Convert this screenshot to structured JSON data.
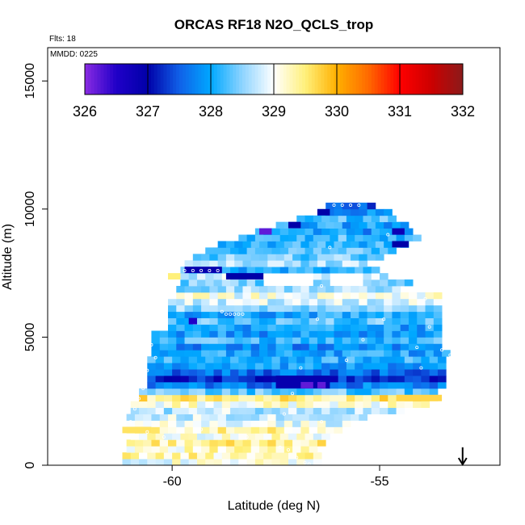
{
  "chart_data": {
    "type": "heatmap",
    "title": "ORCAS RF18 N2O_QCLS_trop",
    "notes": {
      "flights": "Flts: 18",
      "date": "MMDD: 0225"
    },
    "xlabel": "Latitude (deg N)",
    "ylabel": "Altitude (m)",
    "xlim": [
      -63,
      -52.1
    ],
    "ylim": [
      0,
      16300
    ],
    "x_ticks": [
      -60,
      -55
    ],
    "y_ticks": [
      0,
      5000,
      10000,
      15000
    ],
    "colorbar": {
      "range": [
        326,
        332
      ],
      "ticks": [
        326,
        327,
        328,
        329,
        330,
        331,
        332
      ],
      "stops": [
        {
          "v": 326.0,
          "c": "#8a2be2"
        },
        {
          "v": 326.5,
          "c": "#2000c8"
        },
        {
          "v": 327.0,
          "c": "#0000a8"
        },
        {
          "v": 327.5,
          "c": "#1060e8"
        },
        {
          "v": 328.0,
          "c": "#00a8ff"
        },
        {
          "v": 328.5,
          "c": "#8ed4ff"
        },
        {
          "v": 329.0,
          "c": "#ffffff"
        },
        {
          "v": 329.5,
          "c": "#fff07a"
        },
        {
          "v": 330.0,
          "c": "#ffb000"
        },
        {
          "v": 330.5,
          "c": "#ff6a00"
        },
        {
          "v": 331.0,
          "c": "#ff0000"
        },
        {
          "v": 331.5,
          "c": "#cc0000"
        },
        {
          "v": 332.0,
          "c": "#8b1a1a"
        }
      ]
    },
    "cell_size": {
      "dlat": 0.2,
      "dalt": 250
    },
    "bands": [
      {
        "alt": 0,
        "lat0": -61.2,
        "lat1": -56.5,
        "v": 329.0
      },
      {
        "alt": 250,
        "lat0": -61.2,
        "lat1": -56.5,
        "v": 329.3
      },
      {
        "alt": 500,
        "lat0": -61.1,
        "lat1": -56.6,
        "v": 329.2
      },
      {
        "alt": 750,
        "lat0": -61.1,
        "lat1": -56.3,
        "v": 329.4
      },
      {
        "alt": 1000,
        "lat0": -61.0,
        "lat1": -56.2,
        "v": 329.1
      },
      {
        "alt": 1250,
        "lat0": -61.1,
        "lat1": -56.0,
        "v": 329.3
      },
      {
        "alt": 1500,
        "lat0": -61.1,
        "lat1": -55.7,
        "v": 328.9
      },
      {
        "alt": 1750,
        "lat0": -61.1,
        "lat1": -55.3,
        "v": 328.8
      },
      {
        "alt": 2000,
        "lat0": -61.0,
        "lat1": -54.5,
        "v": 328.7
      },
      {
        "alt": 2250,
        "lat0": -61.0,
        "lat1": -53.9,
        "v": 329.1
      },
      {
        "alt": 2500,
        "lat0": -60.8,
        "lat1": -53.5,
        "v": 329.5
      },
      {
        "alt": 2750,
        "lat0": -60.8,
        "lat1": -53.5,
        "v": 328.3
      },
      {
        "alt": 3000,
        "lat0": -60.6,
        "lat1": -53.5,
        "v": 327.7
      },
      {
        "alt": 3250,
        "lat0": -60.6,
        "lat1": -53.5,
        "v": 327.2
      },
      {
        "alt": 3500,
        "lat0": -60.6,
        "lat1": -53.5,
        "v": 327.6
      },
      {
        "alt": 3750,
        "lat0": -60.6,
        "lat1": -53.5,
        "v": 327.9
      },
      {
        "alt": 4000,
        "lat0": -60.6,
        "lat1": -53.5,
        "v": 328.1
      },
      {
        "alt": 4250,
        "lat0": -60.5,
        "lat1": -53.3,
        "v": 328.0
      },
      {
        "alt": 4500,
        "lat0": -60.5,
        "lat1": -53.5,
        "v": 327.8
      },
      {
        "alt": 4750,
        "lat0": -60.5,
        "lat1": -53.5,
        "v": 328.2
      },
      {
        "alt": 5000,
        "lat0": -60.5,
        "lat1": -53.5,
        "v": 327.9
      },
      {
        "alt": 5250,
        "lat0": -60.1,
        "lat1": -53.5,
        "v": 328.0
      },
      {
        "alt": 5500,
        "lat0": -60.1,
        "lat1": -53.5,
        "v": 328.3
      },
      {
        "alt": 5750,
        "lat0": -60.1,
        "lat1": -53.5,
        "v": 328.0
      },
      {
        "alt": 6000,
        "lat0": -60.1,
        "lat1": -53.5,
        "v": 328.5
      },
      {
        "alt": 6250,
        "lat0": -60.1,
        "lat1": -53.5,
        "v": 328.8
      },
      {
        "alt": 6500,
        "lat0": -60.1,
        "lat1": -53.5,
        "v": 329.0
      },
      {
        "alt": 6750,
        "lat0": -59.9,
        "lat1": -54.5,
        "v": 328.6
      },
      {
        "alt": 7000,
        "lat0": -59.8,
        "lat1": -54.3,
        "v": 328.4
      },
      {
        "alt": 7250,
        "lat0": -59.8,
        "lat1": -54.8,
        "v": 328.7
      },
      {
        "alt": 7500,
        "lat0": -59.8,
        "lat1": -55.0,
        "v": 328.1
      },
      {
        "alt": 7750,
        "lat0": -59.7,
        "lat1": -55.4,
        "v": 328.6
      },
      {
        "alt": 8000,
        "lat0": -59.5,
        "lat1": -55.0,
        "v": 328.4
      },
      {
        "alt": 8250,
        "lat0": -59.2,
        "lat1": -54.7,
        "v": 328.3
      },
      {
        "alt": 8500,
        "lat0": -58.9,
        "lat1": -54.4,
        "v": 328.1
      },
      {
        "alt": 8750,
        "lat0": -58.4,
        "lat1": -54.0,
        "v": 328.2
      },
      {
        "alt": 9000,
        "lat0": -58.0,
        "lat1": -54.2,
        "v": 327.9
      },
      {
        "alt": 9250,
        "lat0": -57.5,
        "lat1": -54.2,
        "v": 328.0
      },
      {
        "alt": 9500,
        "lat0": -57.0,
        "lat1": -54.6,
        "v": 328.2
      },
      {
        "alt": 9750,
        "lat0": -56.5,
        "lat1": -54.6,
        "v": 327.8
      },
      {
        "alt": 10000,
        "lat0": -56.3,
        "lat1": -55.1,
        "v": 327.5
      }
    ],
    "holes": [
      {
        "lat0": -57.7,
        "lat1": -56.6,
        "alt0": 7000,
        "alt1": 7500
      },
      {
        "lat0": -56.3,
        "lat1": -55.3,
        "alt0": 7000,
        "alt1": 7500
      }
    ],
    "patches": [
      {
        "lat0": -59.7,
        "lat1": -58.8,
        "alt0": 7500,
        "alt1": 7750,
        "v": 326.9
      },
      {
        "lat0": -58.7,
        "lat1": -57.8,
        "alt0": 7250,
        "alt1": 7500,
        "v": 327.0
      },
      {
        "lat0": -57.5,
        "lat1": -56.2,
        "alt0": 3000,
        "alt1": 3500,
        "v": 326.9
      },
      {
        "lat0": -56.9,
        "lat1": -56.6,
        "alt0": 3000,
        "alt1": 3250,
        "v": 326.2
      },
      {
        "lat0": -56.5,
        "lat1": -56.3,
        "alt0": 3000,
        "alt1": 3250,
        "v": 326.2
      },
      {
        "lat0": -59.6,
        "lat1": -59.4,
        "alt0": 5500,
        "alt1": 5750,
        "v": 326.5
      },
      {
        "lat0": -57.9,
        "lat1": -57.6,
        "alt0": 9000,
        "alt1": 9250,
        "v": 326.2
      },
      {
        "lat0": -57.2,
        "lat1": -56.9,
        "alt0": 9250,
        "alt1": 9500,
        "v": 327.0
      },
      {
        "lat0": -56.5,
        "lat1": -56.2,
        "alt0": 9750,
        "alt1": 10000,
        "v": 327.0
      },
      {
        "lat0": -54.7,
        "lat1": -54.3,
        "alt0": 8500,
        "alt1": 8750,
        "v": 327.0
      },
      {
        "lat0": -54.7,
        "lat1": -54.4,
        "alt0": 9000,
        "alt1": 9250,
        "v": 326.8
      },
      {
        "lat0": -60.1,
        "lat1": -59.8,
        "alt0": 7250,
        "alt1": 7500,
        "v": 329.5
      },
      {
        "lat0": -61.2,
        "lat1": -60.5,
        "alt0": 1250,
        "alt1": 1500,
        "v": 329.6
      },
      {
        "lat0": -54.6,
        "lat1": -53.5,
        "alt0": 2500,
        "alt1": 2750,
        "v": 329.7
      }
    ],
    "flight_track": [
      {
        "lat": -59.7,
        "alt": 7600
      },
      {
        "lat": -59.5,
        "alt": 7600
      },
      {
        "lat": -59.3,
        "alt": 7600
      },
      {
        "lat": -59.1,
        "alt": 7600
      },
      {
        "lat": -58.9,
        "alt": 7600
      },
      {
        "lat": -58.8,
        "alt": 6000
      },
      {
        "lat": -58.7,
        "alt": 5900
      },
      {
        "lat": -58.6,
        "alt": 5900
      },
      {
        "lat": -58.5,
        "alt": 5900
      },
      {
        "lat": -58.4,
        "alt": 5900
      },
      {
        "lat": -58.3,
        "alt": 5900
      },
      {
        "lat": -60.5,
        "alt": 4700
      },
      {
        "lat": -60.4,
        "alt": 4200
      },
      {
        "lat": -60.6,
        "alt": 3700
      },
      {
        "lat": -60.7,
        "alt": 3000
      },
      {
        "lat": -60.8,
        "alt": 2600
      },
      {
        "lat": -60.9,
        "alt": 2200
      },
      {
        "lat": -61.0,
        "alt": 1700
      },
      {
        "lat": -60.6,
        "alt": 1300
      },
      {
        "lat": -60.2,
        "alt": 1100
      },
      {
        "lat": -59.3,
        "alt": 1400
      },
      {
        "lat": -58.2,
        "alt": 1100
      },
      {
        "lat": -57.4,
        "alt": 700
      },
      {
        "lat": -57.0,
        "alt": 300
      },
      {
        "lat": -56.8,
        "alt": 100
      },
      {
        "lat": -56.7,
        "alt": 50
      },
      {
        "lat": -57.2,
        "alt": 600
      },
      {
        "lat": -57.3,
        "alt": 2000
      },
      {
        "lat": -57.1,
        "alt": 2800
      },
      {
        "lat": -56.9,
        "alt": 3800
      },
      {
        "lat": -56.5,
        "alt": 5700
      },
      {
        "lat": -56.4,
        "alt": 7000
      },
      {
        "lat": -56.2,
        "alt": 8500
      },
      {
        "lat": -56.1,
        "alt": 10150
      },
      {
        "lat": -55.9,
        "alt": 10150
      },
      {
        "lat": -55.7,
        "alt": 10150
      },
      {
        "lat": -55.5,
        "alt": 10150
      },
      {
        "lat": -54.8,
        "alt": 9000
      },
      {
        "lat": -54.2,
        "alt": 8200
      },
      {
        "lat": -53.9,
        "alt": 6500
      },
      {
        "lat": -53.8,
        "alt": 5400
      },
      {
        "lat": -53.5,
        "alt": 4500
      },
      {
        "lat": -53.3,
        "alt": 4300
      },
      {
        "lat": -54.1,
        "alt": 4600
      },
      {
        "lat": -54.0,
        "alt": 3800
      },
      {
        "lat": -54.9,
        "alt": 5700
      },
      {
        "lat": -55.4,
        "alt": 4900
      },
      {
        "lat": -55.8,
        "alt": 4100
      },
      {
        "lat": -56.4,
        "alt": 1700
      }
    ],
    "marker": {
      "lat": -53.0,
      "alt_top": 700,
      "alt_bottom": 0
    }
  }
}
